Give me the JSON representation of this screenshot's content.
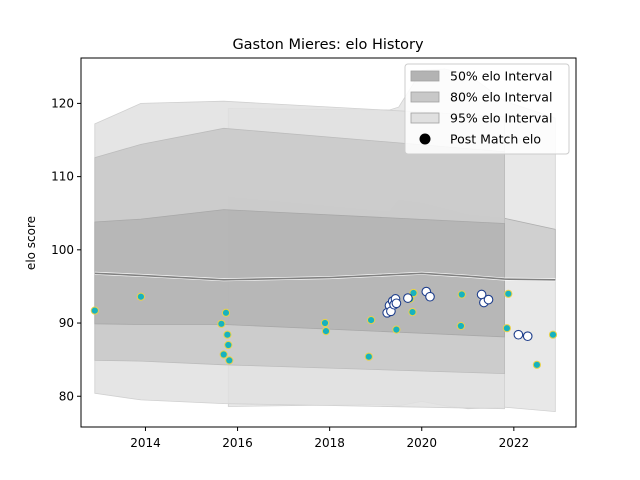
{
  "chart_data": {
    "type": "scatter",
    "title": "Gaston Mieres: elo History",
    "xlabel": "",
    "ylabel": "elo score",
    "xlim": [
      2012.6,
      2023.35
    ],
    "ylim": [
      75.8,
      126.2
    ],
    "x_ticks": [
      2014,
      2016,
      2018,
      2020,
      2022
    ],
    "y_ticks": [
      80,
      90,
      100,
      110,
      120
    ],
    "grid": false,
    "legend_position": "top-right",
    "legend": [
      {
        "label": "50% elo Interval",
        "kind": "band",
        "color": "#b3b3b3"
      },
      {
        "label": "80% elo Interval",
        "kind": "band",
        "color": "#c8c8c8"
      },
      {
        "label": "95% elo Interval",
        "kind": "band",
        "color": "#e0e0e0"
      },
      {
        "label": "Post Match elo",
        "kind": "marker",
        "color": "#000000"
      }
    ],
    "band_dates": [
      2012.9,
      2013.9,
      2015.7,
      2021.8
    ],
    "bands": {
      "ci95": {
        "upper": [
          117.2,
          120.0,
          120.3,
          118.2
        ],
        "lower": [
          80.4,
          79.5,
          79.0,
          78.3
        ],
        "color": "#e0e0e0"
      },
      "ci80": {
        "upper": [
          112.6,
          114.4,
          116.6,
          113.4
        ],
        "lower": [
          84.9,
          84.8,
          84.3,
          83.1
        ],
        "color": "#c8c8c8"
      },
      "ci50": {
        "upper": [
          103.8,
          104.2,
          105.5,
          103.6
        ],
        "lower": [
          89.9,
          89.8,
          89.8,
          88.1
        ],
        "color": "#b3b3b3"
      }
    },
    "bands_later": {
      "dates": [
        2015.8,
        2019.3,
        2019.5,
        2020.0,
        2020.5,
        2021.0,
        2021.8,
        2022.9
      ],
      "ci95": {
        "upper": [
          119.3,
          119.1,
          119.5,
          124.5,
          124.7,
          124.0,
          120.3,
          118.0
        ],
        "lower": [
          78.6,
          78.9,
          78.7,
          79.3,
          78.7,
          78.3,
          78.5,
          77.9
        ],
        "color": "#e0e0e0"
      },
      "ci50": {
        "upper": [
          107.2,
          105.2,
          106.8,
          106.4,
          105.6,
          104.8,
          104.3,
          102.8
        ],
        "lower": [
          96.4,
          96.0,
          96.5,
          96.6,
          97.0,
          96.7,
          96.0,
          95.9
        ],
        "color": "#b3b3b3"
      }
    },
    "mean_line": {
      "x": [
        2012.9,
        2013.9,
        2015.7,
        2018.0,
        2020.0,
        2021.0,
        2021.8,
        2022.9
      ],
      "y": [
        96.8,
        96.5,
        95.9,
        96.2,
        96.8,
        96.4,
        96.0,
        95.9
      ],
      "color": "#808080"
    },
    "series": [
      {
        "marker": "circle-filled",
        "points": [
          [
            2012.9,
            91.7
          ],
          [
            2013.9,
            93.6
          ],
          [
            2015.65,
            89.9
          ],
          [
            2015.7,
            85.7
          ],
          [
            2015.75,
            91.4
          ],
          [
            2015.78,
            88.4
          ],
          [
            2015.8,
            87.0
          ],
          [
            2015.82,
            84.9
          ],
          [
            2017.9,
            90.0
          ],
          [
            2017.92,
            88.9
          ],
          [
            2018.85,
            85.4
          ],
          [
            2018.9,
            90.4
          ],
          [
            2019.45,
            89.1
          ],
          [
            2019.75,
            93.3
          ],
          [
            2019.8,
            91.5
          ],
          [
            2019.82,
            94.1
          ],
          [
            2020.85,
            89.6
          ],
          [
            2020.87,
            93.9
          ],
          [
            2021.85,
            89.3
          ],
          [
            2021.88,
            94.0
          ],
          [
            2022.5,
            84.3
          ],
          [
            2022.85,
            88.4
          ]
        ],
        "fill": "#17b2bf",
        "edge": "#e8d24a"
      },
      {
        "marker": "circle-open",
        "points": [
          [
            2019.25,
            91.4
          ],
          [
            2019.3,
            92.4
          ],
          [
            2019.33,
            91.6
          ],
          [
            2019.37,
            93.0
          ],
          [
            2019.4,
            92.5
          ],
          [
            2019.43,
            93.3
          ],
          [
            2019.45,
            92.7
          ],
          [
            2019.7,
            93.4
          ],
          [
            2020.1,
            94.3
          ],
          [
            2020.18,
            93.6
          ],
          [
            2021.3,
            93.9
          ],
          [
            2021.35,
            92.8
          ],
          [
            2021.45,
            93.2
          ],
          [
            2022.1,
            88.4
          ],
          [
            2022.3,
            88.2
          ]
        ],
        "fill": "#ffffff",
        "edge": "#1f3f8c"
      }
    ]
  }
}
